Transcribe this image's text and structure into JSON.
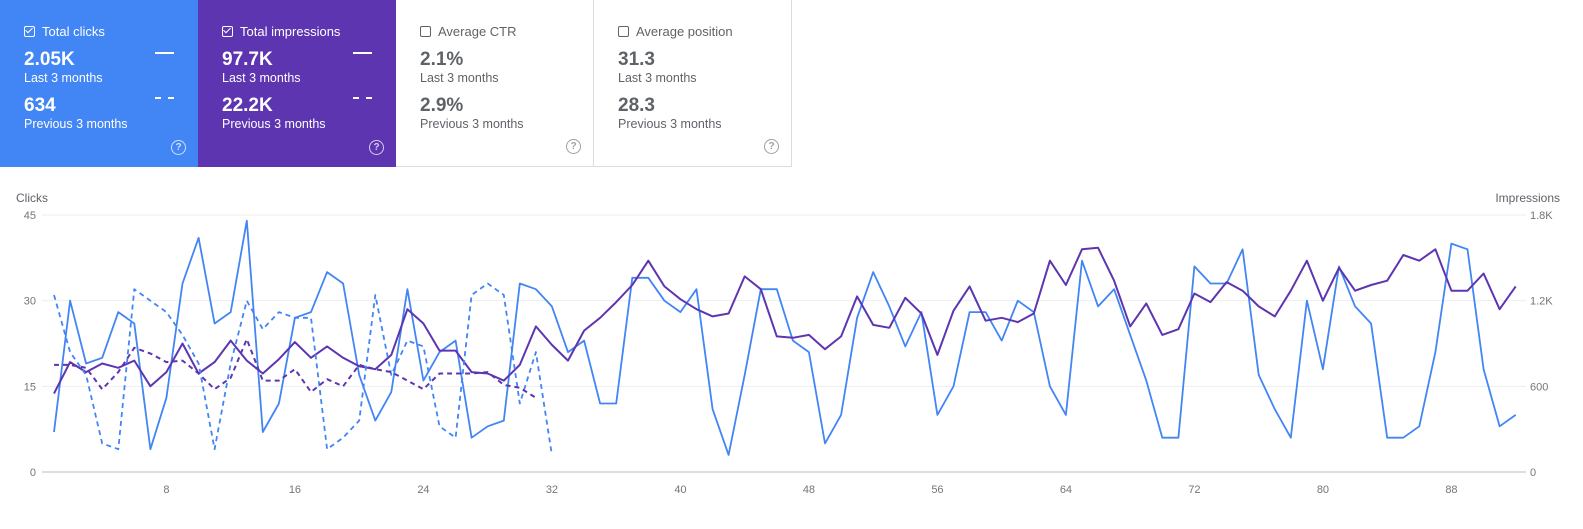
{
  "cards": [
    {
      "key": "clicks",
      "label": "Total clicks",
      "checked": true,
      "value": "2.05K",
      "period1": "Last 3 months",
      "value2": "634",
      "period2": "Previous 3 months",
      "help": "?"
    },
    {
      "key": "impressions",
      "label": "Total impressions",
      "checked": true,
      "value": "97.7K",
      "period1": "Last 3 months",
      "value2": "22.2K",
      "period2": "Previous 3 months",
      "help": "?"
    },
    {
      "key": "ctr",
      "label": "Average CTR",
      "checked": false,
      "value": "2.1%",
      "period1": "Last 3 months",
      "value2": "2.9%",
      "period2": "Previous 3 months",
      "help": "?"
    },
    {
      "key": "position",
      "label": "Average position",
      "checked": false,
      "value": "31.3",
      "period1": "Last 3 months",
      "value2": "28.3",
      "period2": "Previous 3 months",
      "help": "?"
    }
  ],
  "colors": {
    "clicks": "#4285f4",
    "impressions": "#5e35b1",
    "grid": "#e0e0e0",
    "axis": "#bdbdbd"
  },
  "chart_data": {
    "type": "line",
    "left_axis_title": "Clicks",
    "right_axis_title": "Impressions",
    "left_ylim": [
      0,
      45
    ],
    "left_ticks": [
      "0",
      "15",
      "30",
      "45"
    ],
    "right_ylim": [
      0,
      1800
    ],
    "right_ticks": [
      "0",
      "600",
      "1.2K",
      "1.8K"
    ],
    "x_ticks": [
      8,
      16,
      24,
      32,
      40,
      48,
      56,
      64,
      72,
      80,
      88
    ],
    "grid": true,
    "series": [
      {
        "name": "Total clicks",
        "axis": "left",
        "style": "solid",
        "color": "#4285f4",
        "x_start": 1,
        "values": [
          7,
          30,
          19,
          20,
          28,
          26,
          4,
          13,
          33,
          41,
          26,
          28,
          44,
          7,
          12,
          27,
          28,
          35,
          33,
          17,
          9,
          14,
          32,
          16,
          21,
          23,
          6,
          8,
          9,
          33,
          32,
          29,
          21,
          23,
          12,
          12,
          34,
          34,
          30,
          28,
          32,
          11,
          3,
          17,
          32,
          32,
          23,
          21,
          5,
          10,
          27,
          35,
          29,
          22,
          28,
          10,
          15,
          28,
          28,
          23,
          30,
          28,
          15,
          10,
          37,
          29,
          32,
          24,
          16,
          6,
          6,
          36,
          33,
          33,
          39,
          17,
          11,
          6,
          30,
          18,
          36,
          29,
          26,
          6,
          6,
          8,
          21,
          40,
          39,
          18,
          8,
          10
        ]
      },
      {
        "name": "Total impressions",
        "axis": "right",
        "style": "solid",
        "color": "#5e35b1",
        "x_start": 1,
        "values": [
          550,
          770,
          700,
          760,
          730,
          780,
          600,
          700,
          900,
          690,
          770,
          920,
          780,
          690,
          790,
          910,
          800,
          880,
          800,
          740,
          720,
          820,
          1140,
          1040,
          850,
          850,
          700,
          690,
          640,
          750,
          1020,
          890,
          780,
          990,
          1080,
          1190,
          1310,
          1480,
          1300,
          1210,
          1140,
          1090,
          1110,
          1370,
          1280,
          950,
          940,
          960,
          860,
          950,
          1230,
          1030,
          1010,
          1220,
          1110,
          820,
          1130,
          1300,
          1060,
          1080,
          1050,
          1110,
          1480,
          1310,
          1560,
          1570,
          1340,
          1020,
          1180,
          960,
          1000,
          1250,
          1190,
          1330,
          1270,
          1160,
          1090,
          1270,
          1480,
          1200,
          1430,
          1270,
          1310,
          1340,
          1520,
          1480,
          1560,
          1270,
          1270,
          1390,
          1140,
          1300
        ]
      },
      {
        "name": "Total clicks (previous)",
        "axis": "left",
        "style": "dashed",
        "color": "#4285f4",
        "x_start": 1,
        "values": [
          31,
          21,
          17,
          5,
          4,
          32,
          30,
          28,
          24,
          19,
          4,
          19,
          30,
          25,
          28,
          27,
          27,
          4,
          6,
          9,
          31,
          17,
          23,
          22,
          8,
          6,
          31,
          33,
          31,
          12,
          21,
          3
        ]
      },
      {
        "name": "Total impressions (previous)",
        "axis": "right",
        "style": "dashed",
        "color": "#5e35b1",
        "x_start": 1,
        "values": [
          750,
          750,
          730,
          580,
          700,
          870,
          830,
          770,
          780,
          690,
          580,
          660,
          930,
          640,
          640,
          720,
          560,
          650,
          600,
          750,
          720,
          700,
          640,
          580,
          690,
          690,
          690,
          700,
          610,
          590,
          520
        ]
      }
    ]
  }
}
